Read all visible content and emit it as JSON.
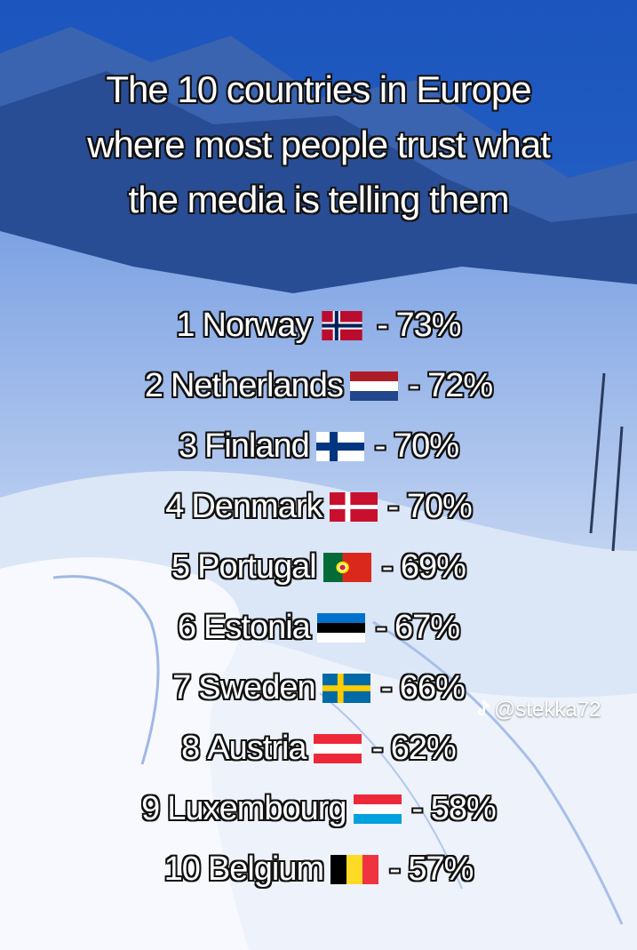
{
  "title": {
    "line1": "The 10 countries in Europe",
    "line2": "where most people trust what",
    "line3": "the media is telling them"
  },
  "rankings": [
    {
      "rank": "1",
      "country": "Norway",
      "flag": "norway-flag",
      "value": "- 73%"
    },
    {
      "rank": "2",
      "country": "Netherlands",
      "flag": "netherlands-flag",
      "value": "- 72%"
    },
    {
      "rank": "3",
      "country": "Finland",
      "flag": "finland-flag",
      "value": "- 70%"
    },
    {
      "rank": "4",
      "country": "Denmark",
      "flag": "denmark-flag",
      "value": "- 70%"
    },
    {
      "rank": "5",
      "country": "Portugal",
      "flag": "portugal-flag",
      "value": "- 69%"
    },
    {
      "rank": "6",
      "country": "Estonia",
      "flag": "estonia-flag",
      "value": "- 67%"
    },
    {
      "rank": "7",
      "country": "Sweden",
      "flag": "sweden-flag",
      "value": "- 66%"
    },
    {
      "rank": "8",
      "country": "Austria",
      "flag": "austria-flag",
      "value": "- 62%"
    },
    {
      "rank": "9",
      "country": "Luxembourg",
      "flag": "luxembourg-flag",
      "value": "- 58%"
    },
    {
      "rank": "10",
      "country": "Belgium",
      "flag": "belgium-flag",
      "value": "- 57%"
    }
  ],
  "watermark": {
    "icon": "tiktok-icon",
    "handle": "@stekka72"
  },
  "colors": {
    "sky": "#1f5fc4",
    "snow": "#eef3fb",
    "shadow_blue": "#6f93d6",
    "text": "#ffffff",
    "outline": "#111111"
  }
}
